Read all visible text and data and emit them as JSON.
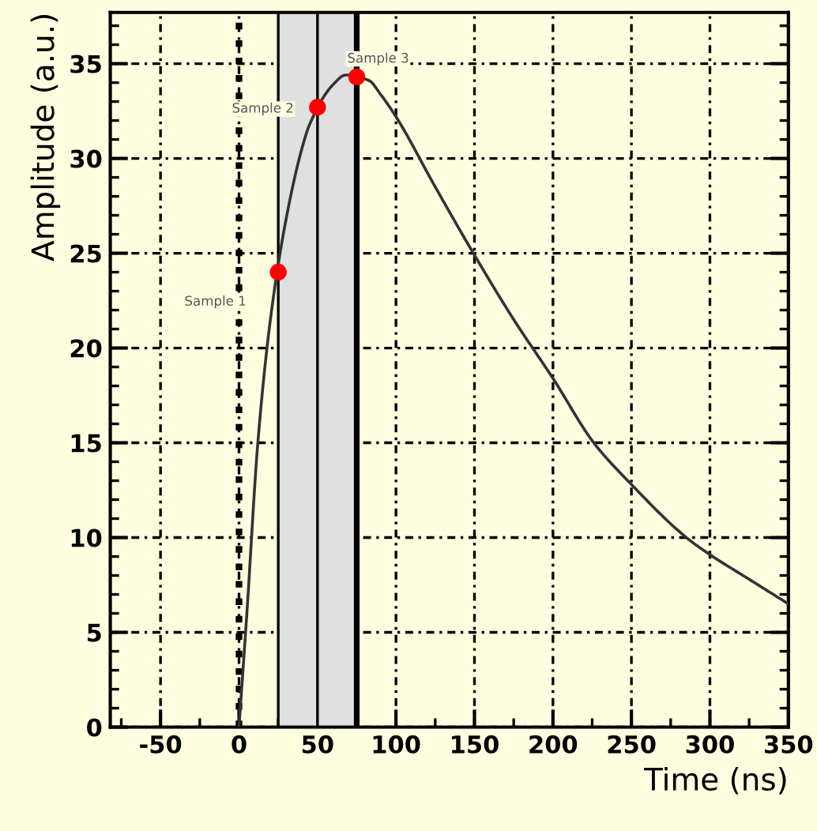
{
  "chart_data": {
    "type": "line",
    "xlabel": "Time (ns)",
    "ylabel": "Amplitude (a.u.)",
    "xlim": [
      -82,
      350
    ],
    "ylim": [
      0,
      37.7
    ],
    "xticks": [
      -50,
      0,
      50,
      100,
      150,
      200,
      250,
      300,
      350
    ],
    "yticks": [
      0,
      5,
      10,
      15,
      20,
      25,
      30,
      35
    ],
    "grid": true,
    "legend": false,
    "series": [
      {
        "color": "#333333",
        "marker": "none",
        "line_style": "solid",
        "x": [
          0,
          5,
          12,
          20,
          30,
          40,
          45,
          60,
          68,
          83,
          90,
          100,
          125,
          150,
          175,
          200,
          226,
          250,
          285,
          300,
          325,
          350
        ],
        "values": [
          0,
          6,
          15,
          21.5,
          26.8,
          30.5,
          31.8,
          33.9,
          34.4,
          34.1,
          33.4,
          32.2,
          28.5,
          24.9,
          21.5,
          18.4,
          15,
          12.8,
          10,
          9.1,
          7.8,
          6.5
        ]
      },
      {
        "type": "scatter",
        "color": "#ff0000",
        "marker": "circle",
        "x": [
          25,
          50,
          75
        ],
        "values": [
          24,
          32.7,
          34.3
        ]
      }
    ],
    "bands": [
      {
        "axis": "x",
        "from": 25,
        "to": 75,
        "color": "#e0e0e0"
      }
    ],
    "ref_lines": [
      {
        "axis": "x",
        "value": 0,
        "line_style": "dotted",
        "color": "#000000"
      },
      {
        "axis": "x",
        "value": 25,
        "line_style": "solid",
        "color": "#000000"
      },
      {
        "axis": "x",
        "value": 50,
        "line_style": "solid",
        "color": "#000000"
      },
      {
        "axis": "x",
        "value": 75,
        "line_style": "solid",
        "color": "#000000"
      }
    ],
    "annotations": [
      "Sample 1",
      "Sample 2",
      "Sample 3"
    ]
  }
}
